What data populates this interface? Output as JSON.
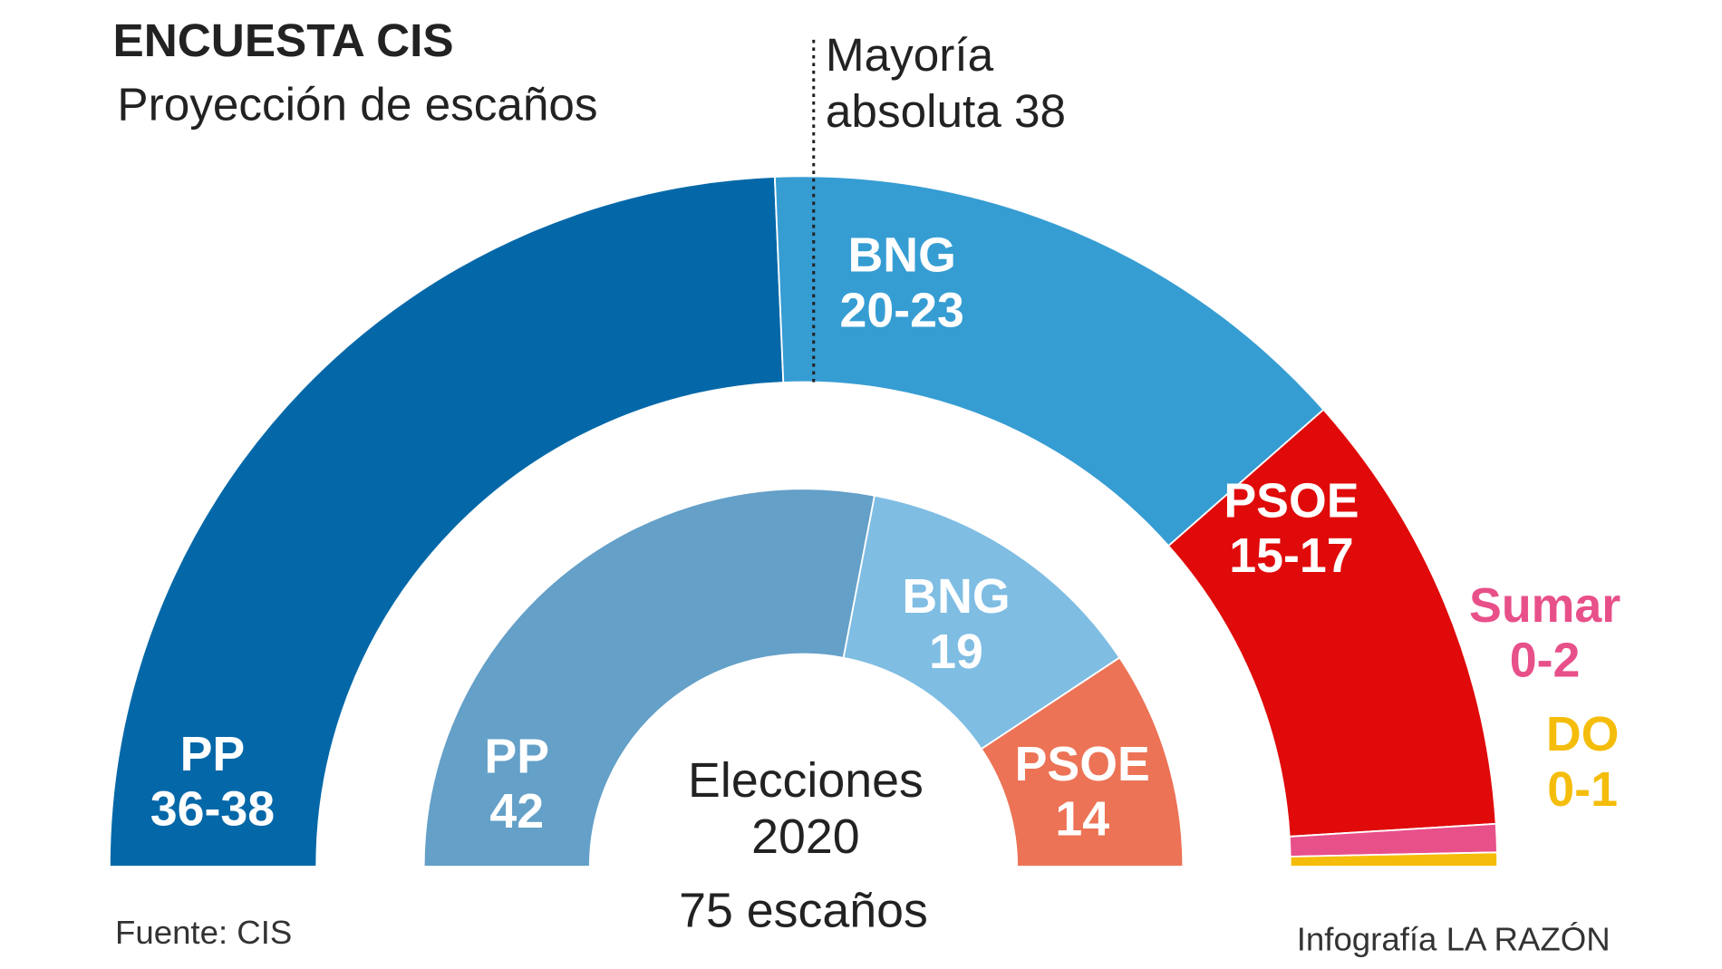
{
  "chart_data": {
    "type": "parliament",
    "title": "ENCUESTA CIS",
    "subtitle": "Proyección de escaños",
    "majority": {
      "lines": [
        "Mayoría",
        "absoluta 38"
      ],
      "value": 38
    },
    "outer": {
      "series": [
        {
          "name": "PP",
          "label": "36-38",
          "min": 36,
          "max": 38,
          "color": "#0468a8"
        },
        {
          "name": "BNG",
          "label": "20-23",
          "min": 20,
          "max": 23,
          "color": "#369dd3"
        },
        {
          "name": "PSOE",
          "label": "15-17",
          "min": 15,
          "max": 17,
          "color": "#e00a0a"
        },
        {
          "name": "Sumar",
          "label": "0-2",
          "min": 0,
          "max": 2,
          "color": "#e8508a"
        },
        {
          "name": "DO",
          "label": "0-1",
          "min": 0,
          "max": 1,
          "color": "#f5bd0b"
        }
      ]
    },
    "inner": {
      "title_lines": [
        "Elecciones",
        "2020"
      ],
      "series": [
        {
          "name": "PP",
          "value": 42,
          "color": "#64a0c8"
        },
        {
          "name": "BNG",
          "value": 19,
          "color": "#7fbde3"
        },
        {
          "name": "PSOE",
          "value": 14,
          "color": "#ec7356"
        }
      ]
    },
    "total": 75,
    "total_label": "75 escaños",
    "source": "Fuente: CIS",
    "credit": "Infografía LA RAZÓN"
  }
}
